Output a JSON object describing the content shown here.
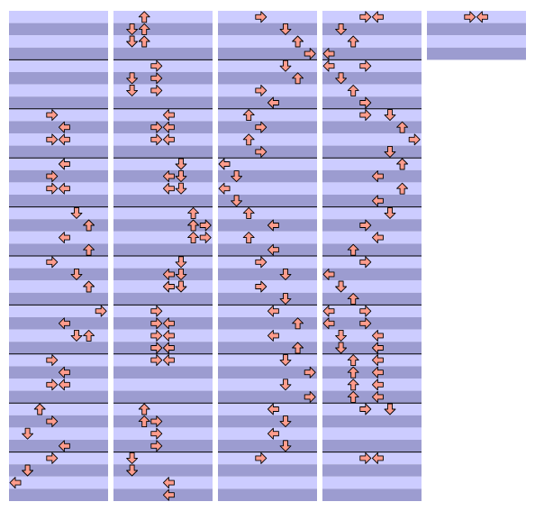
{
  "columns": [
    {
      "measures": 10,
      "notes": [
        [
          8,
          [
            3
          ]
        ],
        [
          9,
          [
            4
          ]
        ],
        [
          10,
          [
            3,
            4
          ]
        ],
        [
          12,
          [
            4
          ]
        ],
        [
          13,
          [
            3
          ]
        ],
        [
          14,
          [
            3,
            4
          ]
        ],
        [
          16,
          [
            5
          ]
        ],
        [
          17,
          [
            6
          ]
        ],
        [
          18,
          [
            4
          ]
        ],
        [
          19,
          [
            6
          ]
        ],
        [
          20,
          [
            3
          ]
        ],
        [
          21,
          [
            5
          ]
        ],
        [
          22,
          [
            6
          ]
        ],
        [
          24,
          [
            7
          ]
        ],
        [
          25,
          [
            4
          ]
        ],
        [
          26,
          [
            5,
            6
          ]
        ],
        [
          28,
          [
            3
          ]
        ],
        [
          29,
          [
            4
          ]
        ],
        [
          30,
          [
            3,
            4
          ]
        ],
        [
          32,
          [
            2
          ]
        ],
        [
          33,
          [
            3
          ]
        ],
        [
          34,
          [
            1
          ]
        ],
        [
          35,
          [
            4
          ]
        ],
        [
          36,
          [
            3
          ]
        ],
        [
          37,
          [
            1
          ]
        ],
        [
          38,
          [
            0
          ]
        ]
      ]
    },
    {
      "measures": 10,
      "notes": [
        [
          0,
          [
            2
          ]
        ],
        [
          1,
          [
            1,
            2
          ]
        ],
        [
          2,
          [
            1,
            2
          ]
        ],
        [
          4,
          [
            3
          ]
        ],
        [
          5,
          [
            1,
            3
          ]
        ],
        [
          6,
          [
            1,
            3
          ]
        ],
        [
          8,
          [
            4
          ]
        ],
        [
          9,
          [
            3,
            4
          ]
        ],
        [
          10,
          [
            3,
            4
          ]
        ],
        [
          12,
          [
            5
          ]
        ],
        [
          13,
          [
            4,
            5
          ]
        ],
        [
          14,
          [
            4,
            5
          ]
        ],
        [
          16,
          [
            6
          ]
        ],
        [
          17,
          [
            6,
            7
          ]
        ],
        [
          18,
          [
            6,
            7
          ]
        ],
        [
          20,
          [
            5
          ]
        ],
        [
          21,
          [
            4,
            5
          ]
        ],
        [
          22,
          [
            4,
            5
          ]
        ],
        [
          24,
          [
            3
          ]
        ],
        [
          25,
          [
            3,
            4
          ]
        ],
        [
          26,
          [
            3,
            4
          ]
        ],
        [
          27,
          [
            3,
            4
          ]
        ],
        [
          28,
          [
            3,
            4
          ]
        ],
        [
          32,
          [
            2
          ]
        ],
        [
          33,
          [
            2,
            3
          ]
        ],
        [
          34,
          [
            3
          ]
        ],
        [
          35,
          [
            3
          ]
        ],
        [
          36,
          [
            1
          ]
        ],
        [
          37,
          [
            1
          ]
        ],
        [
          38,
          [
            4
          ]
        ],
        [
          39,
          [
            4
          ]
        ]
      ]
    },
    {
      "measures": 10,
      "notes": [
        [
          0,
          [
            3
          ]
        ],
        [
          1,
          [
            5
          ]
        ],
        [
          2,
          [
            6
          ]
        ],
        [
          3,
          [
            7
          ]
        ],
        [
          4,
          [
            5
          ]
        ],
        [
          5,
          [
            6
          ]
        ],
        [
          6,
          [
            3
          ]
        ],
        [
          7,
          [
            4
          ]
        ],
        [
          8,
          [
            2
          ]
        ],
        [
          9,
          [
            3
          ]
        ],
        [
          10,
          [
            2
          ]
        ],
        [
          11,
          [
            3
          ]
        ],
        [
          12,
          [
            0
          ]
        ],
        [
          13,
          [
            1
          ]
        ],
        [
          14,
          [
            0
          ]
        ],
        [
          15,
          [
            1
          ]
        ],
        [
          16,
          [
            2
          ]
        ],
        [
          17,
          [
            4
          ]
        ],
        [
          18,
          [
            2
          ]
        ],
        [
          19,
          [
            4
          ]
        ],
        [
          20,
          [
            3
          ]
        ],
        [
          21,
          [
            5
          ]
        ],
        [
          22,
          [
            3
          ]
        ],
        [
          23,
          [
            5
          ]
        ],
        [
          24,
          [
            4
          ]
        ],
        [
          25,
          [
            6
          ]
        ],
        [
          26,
          [
            4
          ]
        ],
        [
          27,
          [
            6
          ]
        ],
        [
          28,
          [
            5
          ]
        ],
        [
          29,
          [
            7
          ]
        ],
        [
          30,
          [
            5
          ]
        ],
        [
          31,
          [
            7
          ]
        ],
        [
          32,
          [
            4
          ]
        ],
        [
          33,
          [
            5
          ]
        ],
        [
          34,
          [
            4
          ]
        ],
        [
          35,
          [
            5
          ]
        ],
        [
          36,
          [
            3
          ]
        ]
      ]
    },
    {
      "measures": 10,
      "notes": [
        [
          0,
          [
            3,
            4
          ]
        ],
        [
          1,
          [
            1
          ]
        ],
        [
          2,
          [
            2
          ]
        ],
        [
          3,
          [
            0
          ]
        ],
        [
          4,
          [
            0,
            3
          ]
        ],
        [
          5,
          [
            1
          ]
        ],
        [
          6,
          [
            2
          ]
        ],
        [
          7,
          [
            3
          ]
        ],
        [
          8,
          [
            3,
            5
          ]
        ],
        [
          9,
          [
            6
          ]
        ],
        [
          10,
          [
            7
          ]
        ],
        [
          11,
          [
            5
          ]
        ],
        [
          12,
          [
            6
          ]
        ],
        [
          13,
          [
            4
          ]
        ],
        [
          14,
          [
            6
          ]
        ],
        [
          15,
          [
            4
          ]
        ],
        [
          16,
          [
            5
          ]
        ],
        [
          17,
          [
            3
          ]
        ],
        [
          18,
          [
            4
          ]
        ],
        [
          19,
          [
            2
          ]
        ],
        [
          20,
          [
            3
          ]
        ],
        [
          21,
          [
            0
          ]
        ],
        [
          22,
          [
            1
          ]
        ],
        [
          23,
          [
            2
          ]
        ],
        [
          24,
          [
            0,
            3
          ]
        ],
        [
          25,
          [
            0,
            3
          ]
        ],
        [
          26,
          [
            1,
            4
          ]
        ],
        [
          27,
          [
            1,
            4
          ]
        ],
        [
          28,
          [
            2,
            4
          ]
        ],
        [
          29,
          [
            2,
            4
          ]
        ],
        [
          30,
          [
            2,
            4
          ]
        ],
        [
          31,
          [
            2,
            4
          ]
        ],
        [
          32,
          [
            3,
            5
          ]
        ],
        [
          36,
          [
            3,
            4
          ]
        ]
      ]
    },
    {
      "measures": 1,
      "notes": [
        [
          0,
          [
            3,
            4
          ]
        ]
      ]
    }
  ]
}
